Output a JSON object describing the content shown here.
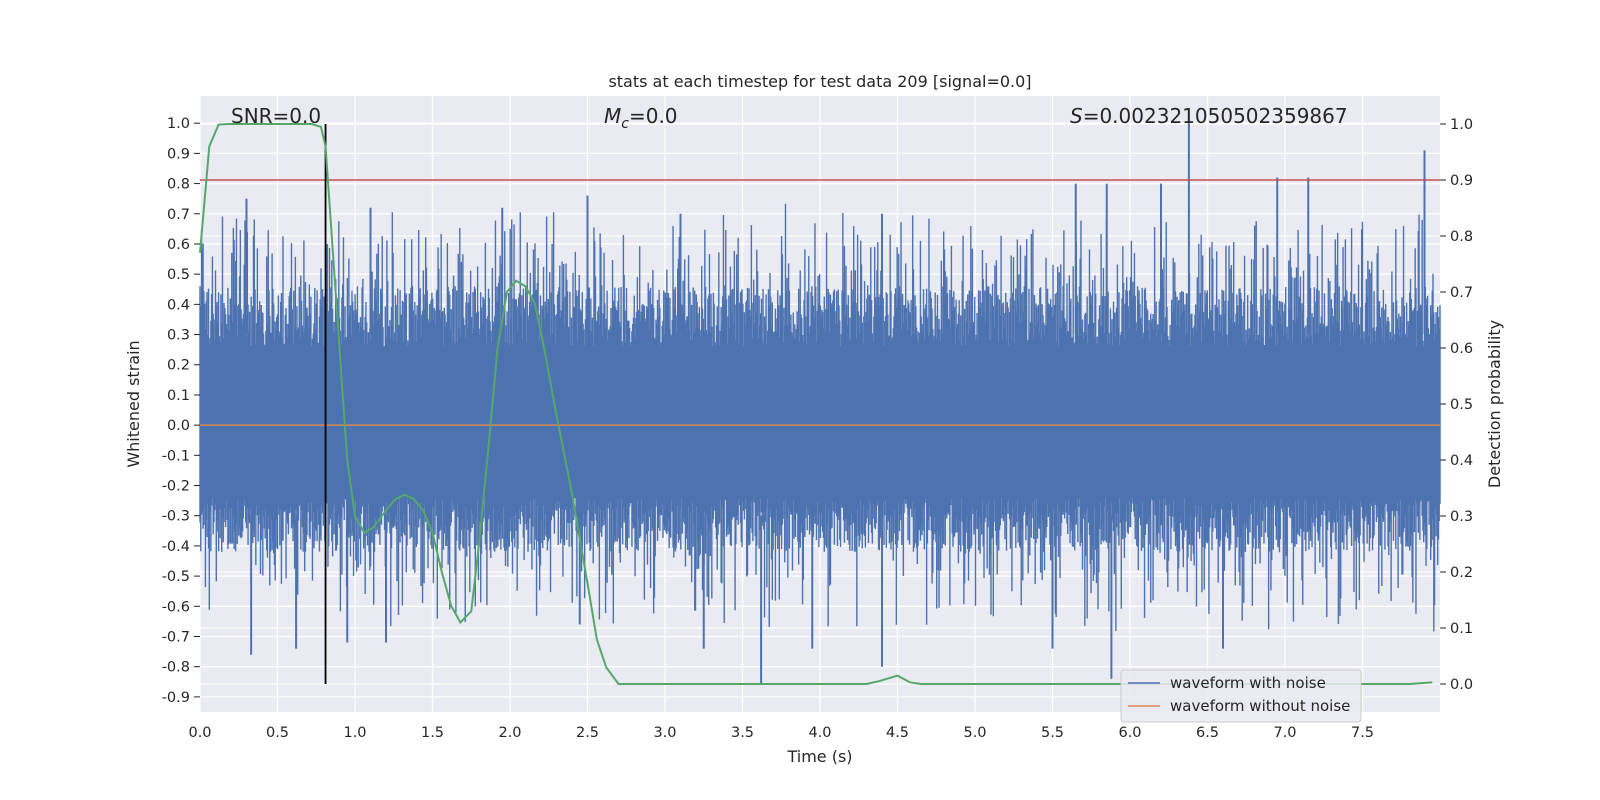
{
  "chart_data": {
    "type": "line",
    "title": "stats at each timestep for test data 209 [signal=0.0]",
    "xlabel": "Time (s)",
    "ylabel": "Whitened strain",
    "y2label": "Detection probability",
    "xlim": [
      0.0,
      8.0
    ],
    "ylim": [
      -0.95,
      1.09
    ],
    "y2lim": [
      -0.05,
      1.05
    ],
    "xticks": [
      "0.0",
      "0.5",
      "1.0",
      "1.5",
      "2.0",
      "2.5",
      "3.0",
      "3.5",
      "4.0",
      "4.5",
      "5.0",
      "5.5",
      "6.0",
      "6.5",
      "7.0",
      "7.5"
    ],
    "yticks": [
      "1.0",
      "0.9",
      "0.8",
      "0.7",
      "0.6",
      "0.5",
      "0.4",
      "0.3",
      "0.2",
      "0.1",
      "0.0",
      "-0.1",
      "-0.2",
      "-0.3",
      "-0.4",
      "-0.5",
      "-0.6",
      "-0.7",
      "-0.8",
      "-0.9"
    ],
    "y2ticks": [
      "1.0",
      "0.9",
      "0.8",
      "0.7",
      "0.6",
      "0.5",
      "0.4",
      "0.3",
      "0.2",
      "0.1",
      "0.0"
    ],
    "grid": true,
    "legend_position": "lower-right",
    "annotations": {
      "snr": "SNR=0.0",
      "mc_symbol": "M",
      "mc_sub": "c",
      "mc_value": "=0.0",
      "s_symbol": "S",
      "s_value": "=0.002321050502359867"
    },
    "threshold_y2": 0.9,
    "marker_time": 0.81,
    "series": [
      {
        "name": "waveform with noise",
        "color": "#4c72b0",
        "axis": "left",
        "description": "noise waveform, roughly within -0.85 to 1.0",
        "peaks": [
          [
            0.3,
            0.75
          ],
          [
            0.82,
            0.6
          ],
          [
            1.1,
            0.72
          ],
          [
            1.95,
            0.72
          ],
          [
            2.5,
            0.76
          ],
          [
            3.1,
            0.7
          ],
          [
            4.4,
            0.7
          ],
          [
            5.65,
            0.8
          ],
          [
            5.85,
            0.8
          ],
          [
            6.2,
            0.8
          ],
          [
            6.38,
            1.0
          ],
          [
            6.95,
            0.82
          ],
          [
            7.15,
            0.82
          ],
          [
            7.9,
            0.91
          ]
        ],
        "troughs": [
          [
            0.33,
            -0.76
          ],
          [
            0.62,
            -0.74
          ],
          [
            0.95,
            -0.72
          ],
          [
            1.2,
            -0.72
          ],
          [
            2.45,
            -0.66
          ],
          [
            3.25,
            -0.74
          ],
          [
            3.62,
            -0.86
          ],
          [
            3.95,
            -0.74
          ],
          [
            4.4,
            -0.8
          ],
          [
            5.5,
            -0.74
          ],
          [
            5.88,
            -0.84
          ],
          [
            6.6,
            -0.74
          ]
        ]
      },
      {
        "name": "waveform without noise",
        "color": "#dd8452",
        "axis": "left",
        "x": [
          0.0,
          8.0
        ],
        "values": [
          0.0,
          0.0
        ]
      },
      {
        "name": "detection probability",
        "color": "#55a868",
        "axis": "right",
        "x": [
          0.0,
          0.06,
          0.12,
          0.18,
          0.3,
          0.45,
          0.6,
          0.72,
          0.78,
          0.81,
          0.85,
          0.9,
          0.95,
          1.0,
          1.06,
          1.12,
          1.2,
          1.26,
          1.32,
          1.38,
          1.44,
          1.5,
          1.56,
          1.62,
          1.68,
          1.75,
          1.8,
          1.86,
          1.92,
          1.98,
          2.04,
          2.1,
          2.16,
          2.22,
          2.3,
          2.4,
          2.5,
          2.56,
          2.62,
          2.7,
          2.8,
          3.0,
          3.5,
          4.0,
          4.3,
          4.38,
          4.5,
          4.58,
          4.65,
          4.8,
          5.0,
          6.0,
          7.0,
          7.5,
          7.8,
          7.95
        ],
        "values": [
          0.77,
          0.96,
          0.999,
          1.0,
          1.0,
          1.0,
          1.0,
          1.0,
          0.995,
          0.96,
          0.8,
          0.6,
          0.4,
          0.3,
          0.27,
          0.28,
          0.31,
          0.33,
          0.338,
          0.33,
          0.31,
          0.27,
          0.2,
          0.14,
          0.11,
          0.13,
          0.25,
          0.42,
          0.6,
          0.7,
          0.72,
          0.71,
          0.68,
          0.6,
          0.48,
          0.34,
          0.18,
          0.08,
          0.03,
          0.0,
          0.0,
          0.0,
          0.0,
          0.0,
          0.0,
          0.005,
          0.015,
          0.003,
          0.0,
          0.0,
          0.0,
          0.0,
          0.0,
          0.0,
          0.0,
          0.003
        ]
      }
    ]
  }
}
